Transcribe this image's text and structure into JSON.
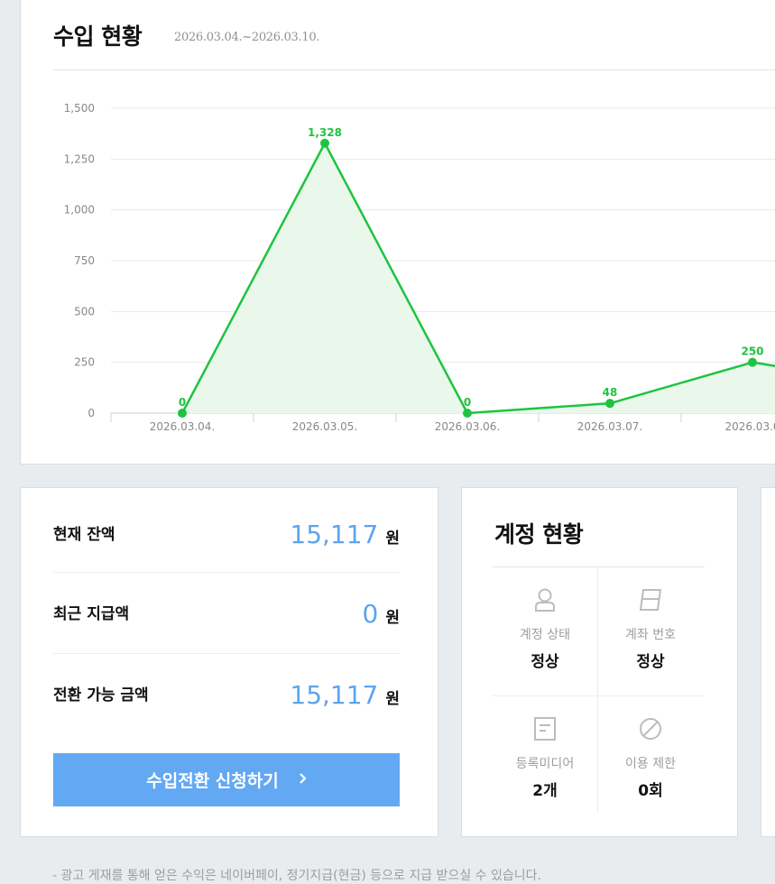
{
  "income": {
    "title": "수입 현황",
    "period": "2026.03.04.~2026.03.10."
  },
  "chart_data": {
    "type": "area",
    "title": "",
    "xlabel": "",
    "ylabel": "",
    "ylim": [
      0,
      1500
    ],
    "yticks": [
      "0",
      "250",
      "500",
      "750",
      "1,000",
      "1,250",
      "1,500"
    ],
    "grid": true,
    "categories": [
      "2026.03.04.",
      "2026.03.05.",
      "2026.03.06.",
      "2026.03.07.",
      "2026.03.0"
    ],
    "series": [
      {
        "values": [
          0,
          1328,
          0,
          48,
          250
        ],
        "data_labels": [
          "0",
          "1,328",
          "0",
          "48",
          "250"
        ]
      }
    ],
    "colors": {
      "line": "#1ec43f",
      "fill": "#eaf8ec",
      "grid": "#e6e8eb",
      "axis": "#c8d3e0"
    }
  },
  "balance": {
    "rows": [
      {
        "label": "현재 잔액",
        "value": "15,117",
        "unit": "원"
      },
      {
        "label": "최근 지급액",
        "value": "0",
        "unit": "원"
      },
      {
        "label": "전환 가능 금액",
        "value": "15,117",
        "unit": "원"
      }
    ],
    "button_label": "수입전환 신청하기",
    "button_icon": "chevron-right-icon",
    "accent_color": "#5ea4ee"
  },
  "account": {
    "title": "계정 현황",
    "items": [
      {
        "icon": "user-icon",
        "label": "계정 상태",
        "value": "정상"
      },
      {
        "icon": "bankbook-icon",
        "label": "계좌 번호",
        "value": "정상"
      },
      {
        "icon": "document-icon",
        "label": "등록미디어",
        "value": "2개"
      },
      {
        "icon": "prohibited-icon",
        "label": "이용 제한",
        "value": "0회"
      }
    ]
  },
  "notice": "- 광고 게재를 통해 얻은 수익은 네이버페이, 정기지급(현금) 등으로 지급 받으실 수 있습니다."
}
